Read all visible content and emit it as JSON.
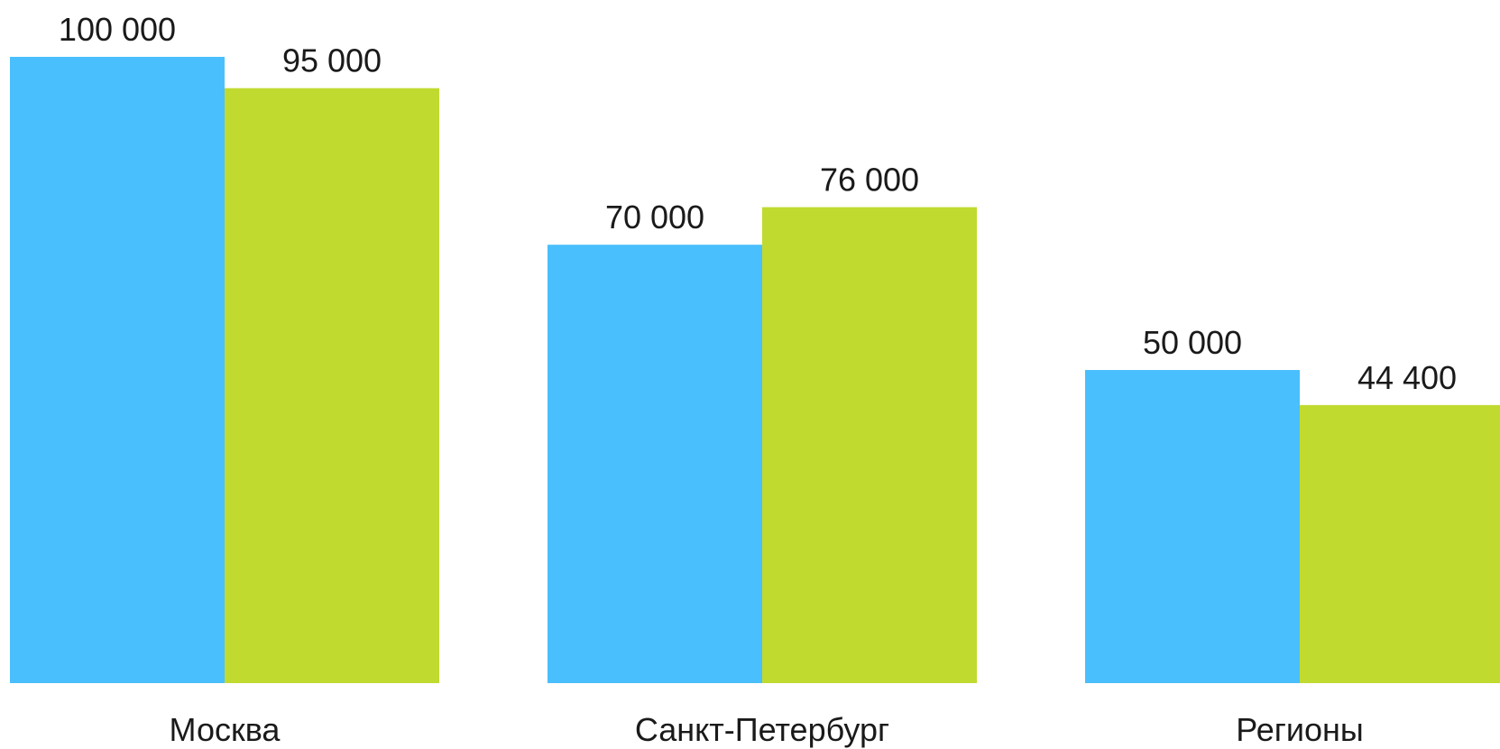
{
  "chart_data": {
    "type": "bar",
    "categories": [
      "Москва",
      "Санкт-Петербург",
      "Регионы"
    ],
    "series": [
      {
        "values": [
          100000,
          70000,
          50000
        ],
        "color": "#4abffd"
      },
      {
        "values": [
          95000,
          76000,
          44400
        ],
        "color": "#c1da30"
      }
    ],
    "data_labels": [
      [
        "100 000",
        "70 000",
        "50 000"
      ],
      [
        "95 000",
        "76 000",
        "44 400"
      ]
    ],
    "ylim": [
      0,
      100000
    ],
    "grid": false,
    "legend": "none"
  }
}
